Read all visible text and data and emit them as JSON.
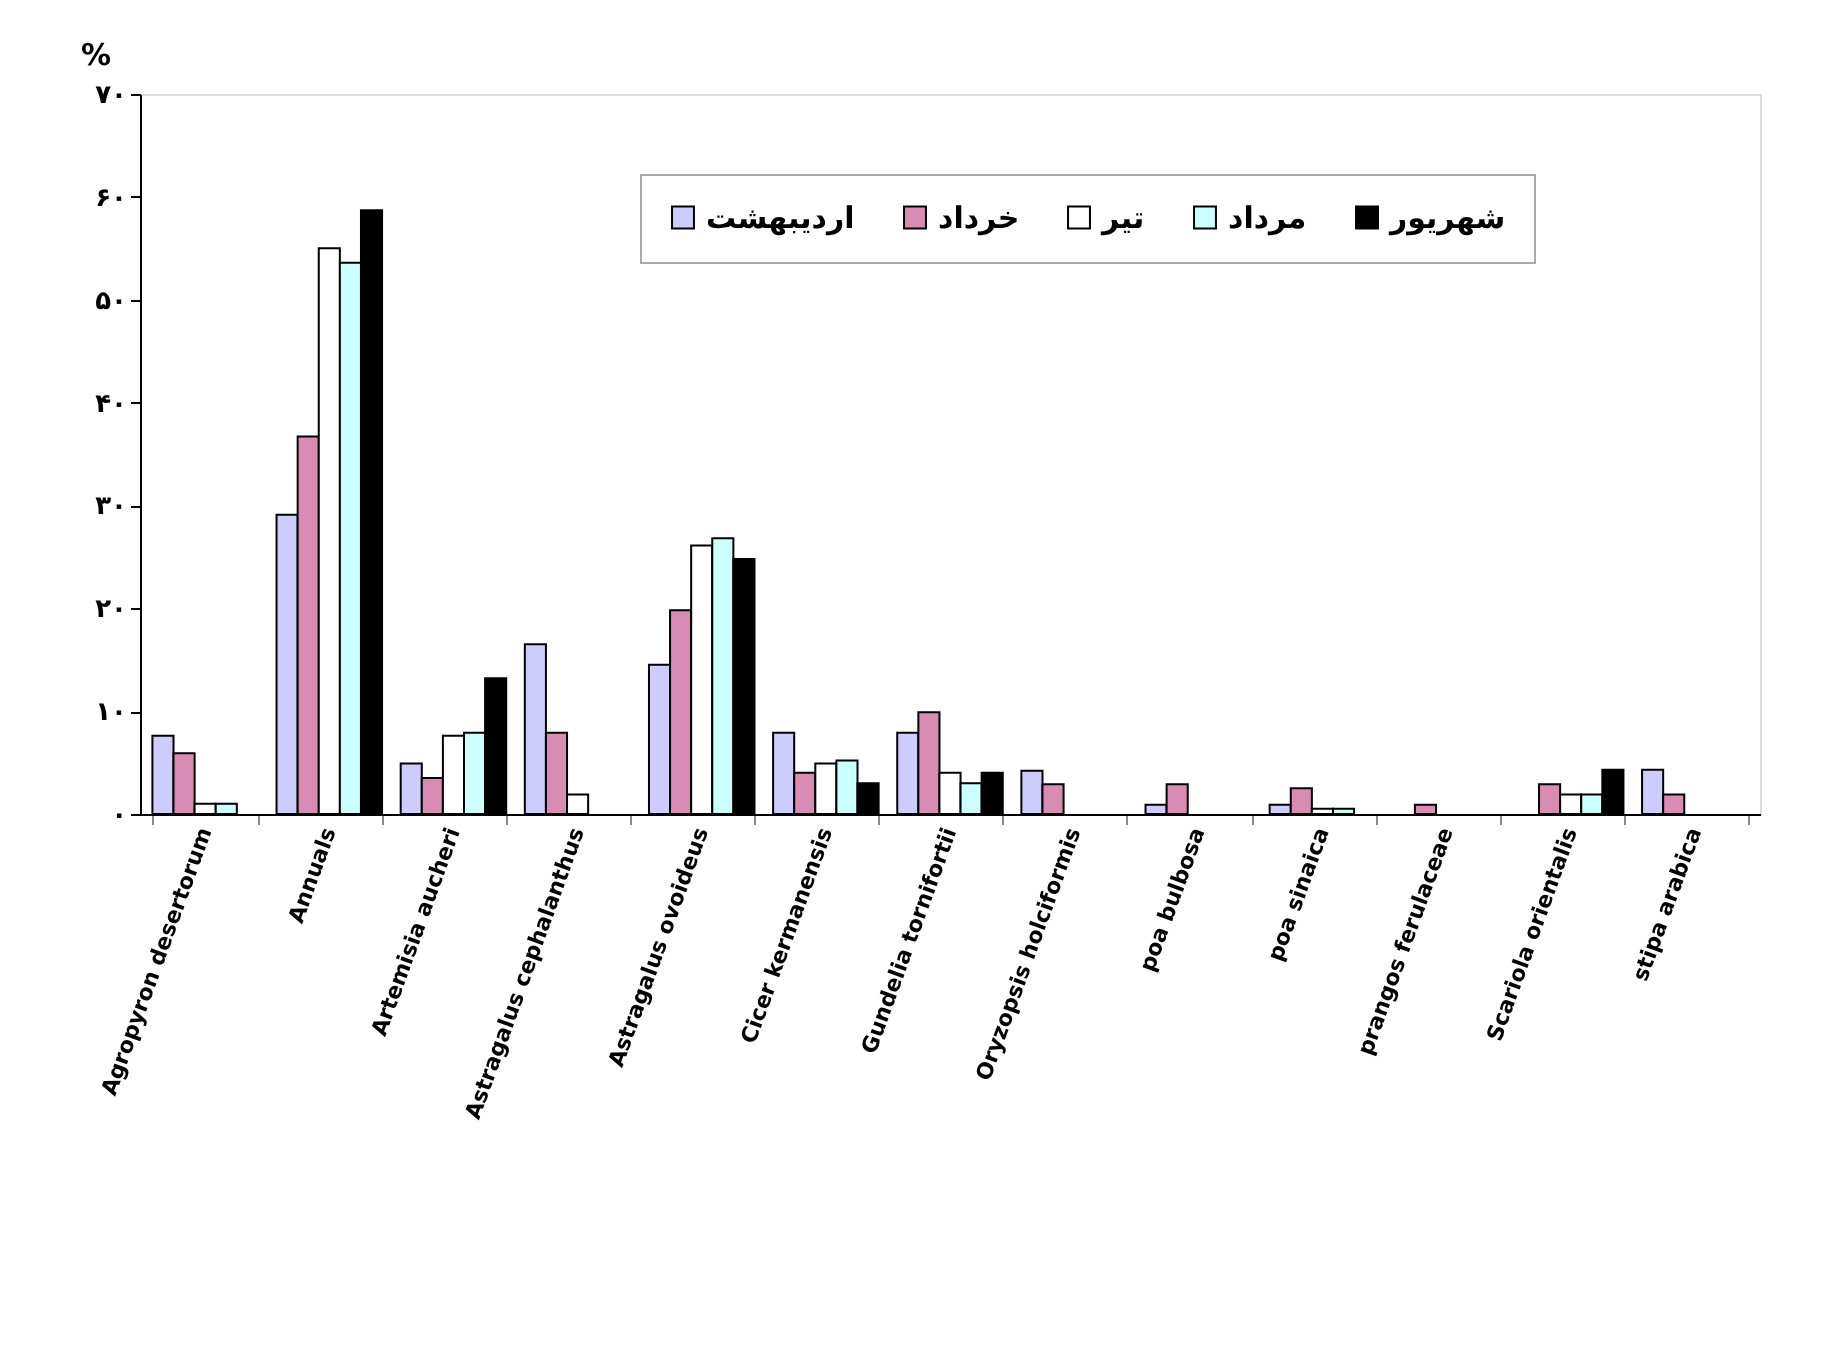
{
  "chart_data": {
    "type": "bar",
    "ylabel": "%",
    "categories": [
      "Agropyron desertorum",
      "Annuals",
      "Artemisia aucheri",
      "Astragalus cephalanthus",
      "Astragalus  ovoideus",
      "Cicer kermanensis",
      "Gundelia tornifortii",
      "Oryzopsis holciformis",
      "poa bulbosa",
      "poa sinaica",
      "prangos ferulaceae",
      "Scariola orientalis",
      "stipa arabica"
    ],
    "series": [
      {
        "name": "اردیبهشت",
        "color": "#ccccff",
        "values": [
          7.6,
          29.1,
          4.9,
          16.5,
          14.5,
          7.9,
          7.9,
          4.2,
          0.9,
          0.9,
          null,
          null,
          4.3
        ]
      },
      {
        "name": "خرداد",
        "color": "#d98cb3",
        "values": [
          5.9,
          36.7,
          3.5,
          7.9,
          19.8,
          4.0,
          9.9,
          2.9,
          2.9,
          2.5,
          0.9,
          2.9,
          1.9
        ]
      },
      {
        "name": "تیر",
        "color": "#ffffff",
        "values": [
          1.0,
          55.0,
          7.6,
          1.9,
          26.1,
          4.9,
          4.0,
          null,
          null,
          0.5,
          null,
          1.9,
          null
        ]
      },
      {
        "name": "مرداد",
        "color": "#ccffff",
        "values": [
          1.0,
          53.6,
          7.9,
          null,
          26.8,
          5.2,
          3.0,
          null,
          null,
          0.5,
          null,
          1.9,
          null
        ]
      },
      {
        "name": "شهریور",
        "color": "#000000",
        "values": [
          null,
          58.7,
          13.2,
          null,
          24.8,
          3.0,
          4.0,
          null,
          null,
          null,
          null,
          4.3,
          null
        ]
      }
    ],
    "ylim": [
      0,
      70
    ],
    "yticks": [
      {
        "value": 0,
        "label": "۰"
      },
      {
        "value": 10,
        "label": "۱۰"
      },
      {
        "value": 20,
        "label": "۲۰"
      },
      {
        "value": 30,
        "label": "۳۰"
      },
      {
        "value": 40,
        "label": "۴۰"
      },
      {
        "value": 50,
        "label": "۵۰"
      },
      {
        "value": 60,
        "label": "۶۰"
      },
      {
        "value": 70,
        "label": "۷۰"
      }
    ],
    "grid": false,
    "legend": "top"
  }
}
